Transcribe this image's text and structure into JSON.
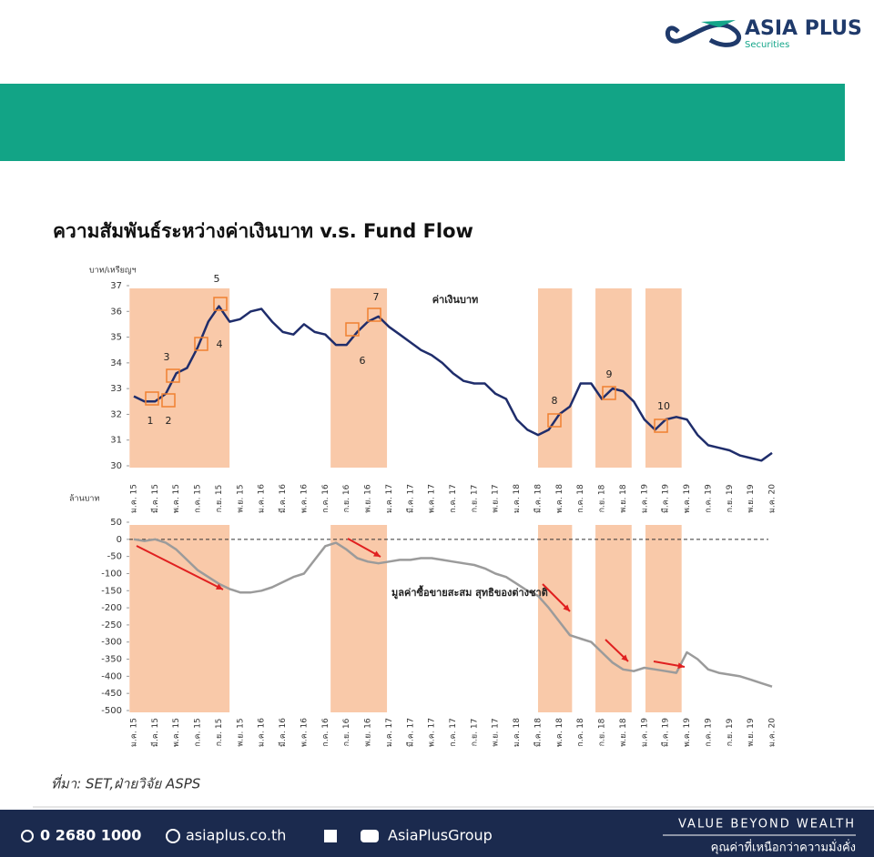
{
  "logo": {
    "name": "ASIA PLUS",
    "sub": "Securities"
  },
  "title": "ความสัมพันธ์ระหว่างค่าเงินบาท v.s. Fund Flow",
  "chart_data": [
    {
      "type": "line",
      "ylabel": "บาท/เหรียญฯ",
      "series_label": "ค่าเงินบาท",
      "annotations": [
        "1",
        "2",
        "3",
        "4",
        "5",
        "6",
        "7",
        "8",
        "9",
        "10"
      ],
      "categories": [
        "ม.ค. 15",
        null,
        "มี.ค. 15",
        null,
        "พ.ค. 15",
        null,
        "ก.ค. 15",
        null,
        "ก.ย. 15",
        null,
        "พ.ย. 15",
        null,
        "ม.ค. 16",
        null,
        "มี.ค. 16",
        null,
        "พ.ค. 16",
        null,
        "ก.ค. 16",
        null,
        "ก.ย. 16",
        null,
        "พ.ย. 16",
        null,
        "ม.ค. 17",
        null,
        "มี.ค. 17",
        null,
        "พ.ค. 17",
        null,
        "ก.ค. 17",
        null,
        "ก.ย. 17",
        null,
        "พ.ย. 17",
        null,
        "ม.ค. 18",
        null,
        "มี.ค. 18",
        null,
        "พ.ค. 18",
        null,
        "ก.ค. 18",
        null,
        "ก.ย. 18",
        null,
        "พ.ย. 18",
        null,
        "ม.ค. 19",
        null,
        "มี.ค. 19",
        null,
        "พ.ค. 19",
        null,
        "ก.ค. 19",
        null,
        "ก.ย. 19",
        null,
        "พ.ย. 19",
        null,
        "ม.ค. 20"
      ],
      "series": [
        {
          "name": "ค่าเงินบาท",
          "color": "#1f2d6b",
          "values": [
            32.7,
            32.5,
            32.5,
            32.8,
            33.6,
            33.8,
            34.6,
            35.6,
            36.2,
            35.6,
            35.7,
            36.0,
            36.1,
            35.6,
            35.2,
            35.1,
            35.5,
            35.2,
            35.1,
            34.7,
            34.7,
            35.2,
            35.6,
            35.8,
            35.4,
            35.1,
            34.8,
            34.5,
            34.3,
            34.0,
            33.6,
            33.3,
            33.2,
            33.2,
            32.8,
            32.6,
            31.8,
            31.4,
            31.2,
            31.4,
            32.0,
            32.3,
            33.2,
            33.2,
            32.6,
            33.0,
            32.9,
            32.5,
            31.8,
            31.4,
            31.8,
            31.9,
            31.8,
            31.2,
            30.8,
            30.7,
            30.6,
            30.4,
            30.3,
            30.2,
            30.5
          ]
        }
      ],
      "shaded_periods": [
        [
          -0.4,
          9.0
        ],
        [
          18.5,
          23.8
        ],
        [
          38.0,
          41.2
        ],
        [
          43.4,
          46.8
        ],
        [
          48.1,
          51.5
        ]
      ],
      "shade_color": "#f9c9a9",
      "ylim": [
        30,
        37
      ],
      "yticks": [
        30,
        31,
        32,
        33,
        34,
        35,
        36,
        37
      ]
    },
    {
      "type": "line",
      "ylabel": "ล้านบาท",
      "series_label": "มูลค่าซื้อขายสะสม สุทธิของต่างชาติ",
      "categories": [
        "ม.ค. 15",
        null,
        "มี.ค. 15",
        null,
        "พ.ค. 15",
        null,
        "ก.ค. 15",
        null,
        "ก.ย. 15",
        null,
        "พ.ย. 15",
        null,
        "ม.ค. 16",
        null,
        "มี.ค. 16",
        null,
        "พ.ค. 16",
        null,
        "ก.ค. 16",
        null,
        "ก.ย. 16",
        null,
        "พ.ย. 16",
        null,
        "ม.ค. 17",
        null,
        "มี.ค. 17",
        null,
        "พ.ค. 17",
        null,
        "ก.ค. 17",
        null,
        "ก.ย. 17",
        null,
        "พ.ย. 17",
        null,
        "ม.ค. 18",
        null,
        "มี.ค. 18",
        null,
        "พ.ค. 18",
        null,
        "ก.ค. 18",
        null,
        "ก.ย. 18",
        null,
        "พ.ย. 18",
        null,
        "ม.ค. 19",
        null,
        "มี.ค. 19",
        null,
        "พ.ค. 19",
        null,
        "ก.ค. 19",
        null,
        "ก.ย. 19",
        null,
        "พ.ย. 19",
        null,
        "ม.ค. 20"
      ],
      "series": [
        {
          "name": "มูลค่าซื้อขายสะสม สุทธิของต่างชาติ",
          "color": "#9b9b9b",
          "values": [
            0,
            -5,
            0,
            -10,
            -30,
            -60,
            -90,
            -110,
            -130,
            -145,
            -155,
            -155,
            -150,
            -140,
            -125,
            -110,
            -100,
            -60,
            -20,
            -10,
            -30,
            -55,
            -65,
            -70,
            -65,
            -60,
            -60,
            -55,
            -55,
            -60,
            -65,
            -70,
            -75,
            -85,
            -100,
            -110,
            -130,
            -150,
            -165,
            -200,
            -240,
            -280,
            -290,
            -300,
            -330,
            -360,
            -380,
            -385,
            -375,
            -380,
            -385,
            -390,
            -330,
            -350,
            -380,
            -390,
            -395,
            -400,
            -410,
            -420,
            -430
          ]
        }
      ],
      "shaded_periods": [
        [
          -0.4,
          9.0
        ],
        [
          18.5,
          23.8
        ],
        [
          38.0,
          41.2
        ],
        [
          43.4,
          46.8
        ],
        [
          48.1,
          51.5
        ]
      ],
      "shade_color": "#f9c9a9",
      "ylim": [
        -500,
        50
      ],
      "yticks": [
        50,
        0,
        -50,
        -100,
        -150,
        -200,
        -250,
        -300,
        -350,
        -400,
        -450,
        -500
      ]
    }
  ],
  "source": "ที่มา: SET,ฝ่ายวิจัย ASPS",
  "footer": {
    "phone": "0 2680 1000",
    "web": "asiaplus.co.th",
    "social": "AsiaPlusGroup",
    "slogan": "VALUE BEYOND WEALTH",
    "slogan_th": "คุณค่าที่เหนือกว่าความมั่งคั่ง"
  }
}
